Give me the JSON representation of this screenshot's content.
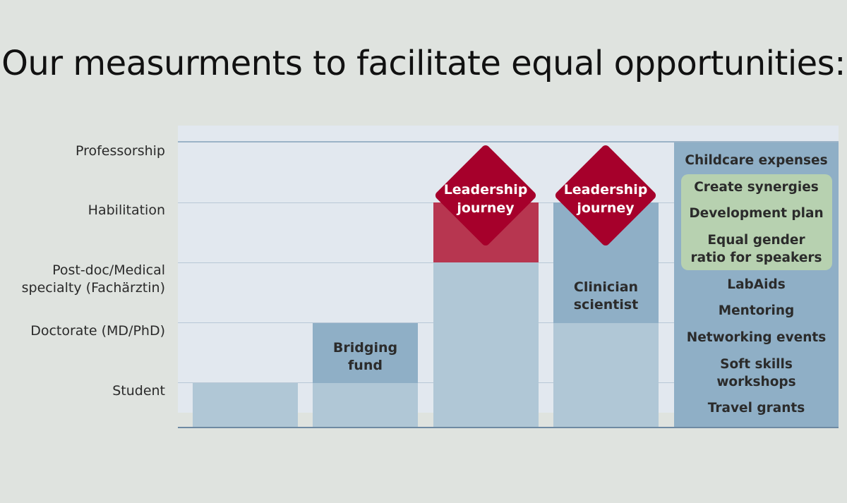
{
  "title": "Our measurments to facilitate equal opportunities:",
  "levels": [
    "Professorship",
    "Habilitation",
    "Post-doc/Medical",
    "specialty (Fachärztin)",
    "Doctorate (MD/PhD)",
    "Student"
  ],
  "programs": {
    "bridging": [
      "Bridging",
      "fund"
    ],
    "leadership_1": [
      "Leadership",
      "journey"
    ],
    "leadership_2": [
      "Leadership",
      "journey"
    ],
    "clinician": [
      "Clinician",
      "scientist"
    ]
  },
  "measures": [
    "Childcare expenses",
    "Create synergies",
    "Development plan",
    "Equal gender",
    "ratio for speakers",
    "LabAids",
    "Mentoring",
    "Networking events",
    "Soft skills",
    "workshops",
    "Travel grants"
  ],
  "colors": {
    "background": "#dfe3df",
    "panel": "#e2e8ef",
    "light_blue": "#b0c7d6",
    "mid_blue": "#8fafc6",
    "red": "#a6002b",
    "red_light": "#b73650",
    "green": "#b7d1b0"
  }
}
